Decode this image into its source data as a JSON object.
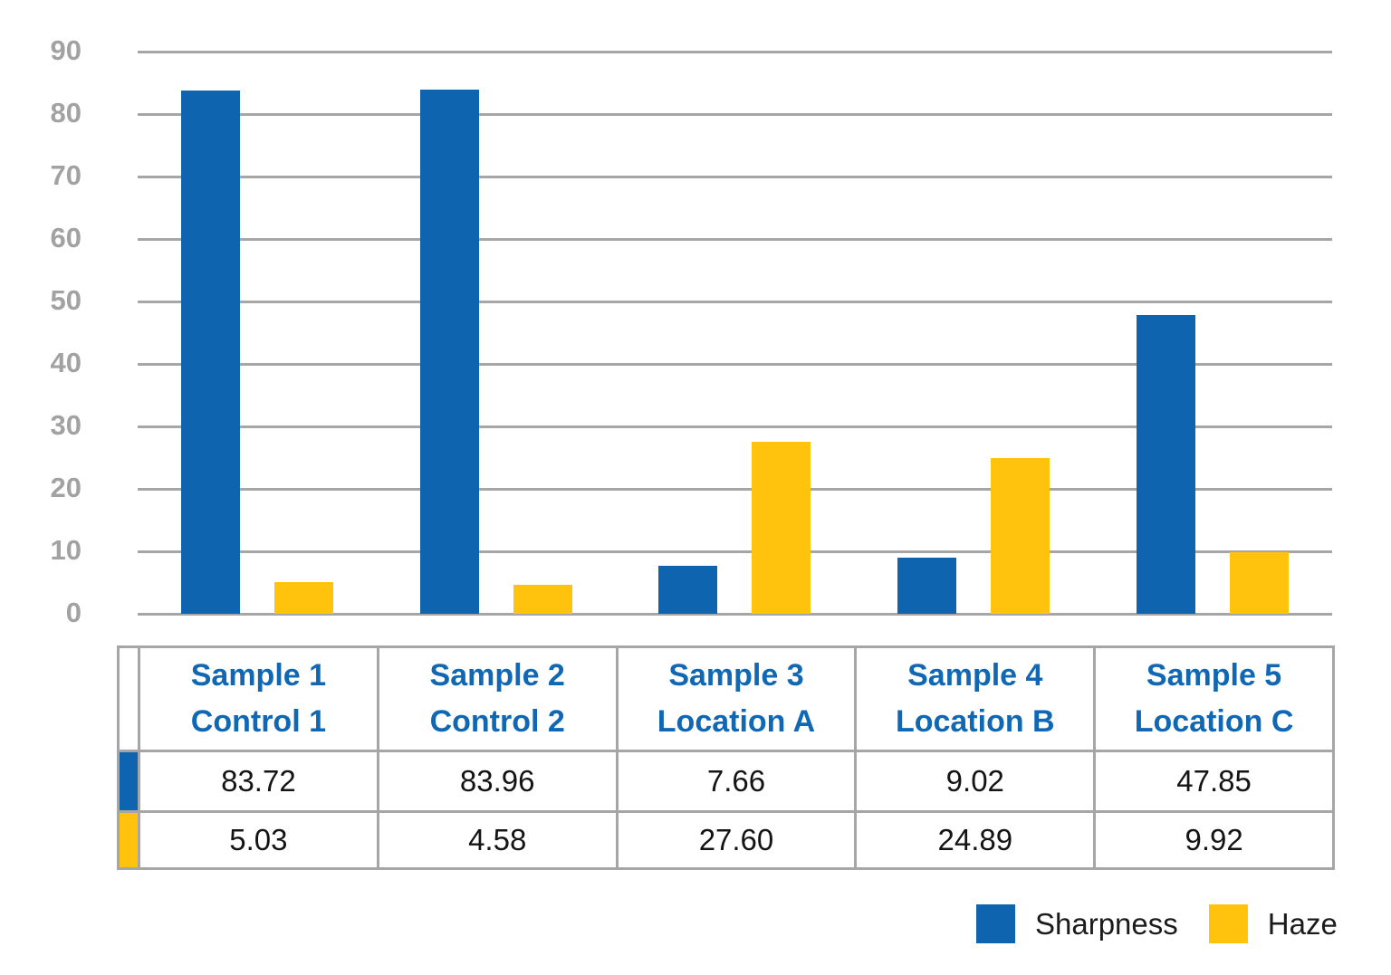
{
  "chart_data": {
    "type": "bar",
    "title": "",
    "xlabel": "",
    "ylabel": "",
    "ylim": [
      0,
      90
    ],
    "yticks": [
      90,
      80,
      70,
      60,
      50,
      40,
      30,
      20,
      10,
      0
    ],
    "grid": true,
    "legend_position": "bottom-right",
    "categories": [
      {
        "line1": "Sample 1",
        "line2": "Control 1"
      },
      {
        "line1": "Sample 2",
        "line2": "Control 2"
      },
      {
        "line1": "Sample 3",
        "line2": "Location A"
      },
      {
        "line1": "Sample 4",
        "line2": "Location B"
      },
      {
        "line1": "Sample 5",
        "line2": "Location C"
      }
    ],
    "series": [
      {
        "name": "Sharpness",
        "color": "#0f64af",
        "values": [
          83.72,
          83.96,
          7.66,
          9.02,
          47.85
        ]
      },
      {
        "name": "Haze",
        "color": "#ffc20d",
        "values": [
          5.03,
          4.58,
          27.6,
          24.89,
          9.92
        ]
      }
    ]
  },
  "table": {
    "header_rows": [
      [
        "Sample 1",
        "Sample 2",
        "Sample 3",
        "Sample 4",
        "Sample 5"
      ],
      [
        "Control 1",
        "Control 2",
        "Location A",
        "Location B",
        "Location C"
      ]
    ],
    "sharpness_values": [
      "83.72",
      "83.96",
      "7.66",
      "9.02",
      "47.85"
    ],
    "haze_values": [
      "5.03",
      "4.58",
      "27.60",
      "24.89",
      "9.92"
    ]
  },
  "legend": {
    "items": [
      {
        "label": "Sharpness",
        "color": "#0f64af"
      },
      {
        "label": "Haze",
        "color": "#ffc20d"
      }
    ]
  },
  "colors": {
    "sharpness_blue": "#0f64af",
    "haze_yellow": "#ffc20d",
    "gridline_gray": "#a6a6a6",
    "axis_label_gray": "#a2a2a2",
    "table_border_gray": "#a6a6a6",
    "header_text_blue": "#1068b4",
    "value_text_black": "#141414"
  }
}
